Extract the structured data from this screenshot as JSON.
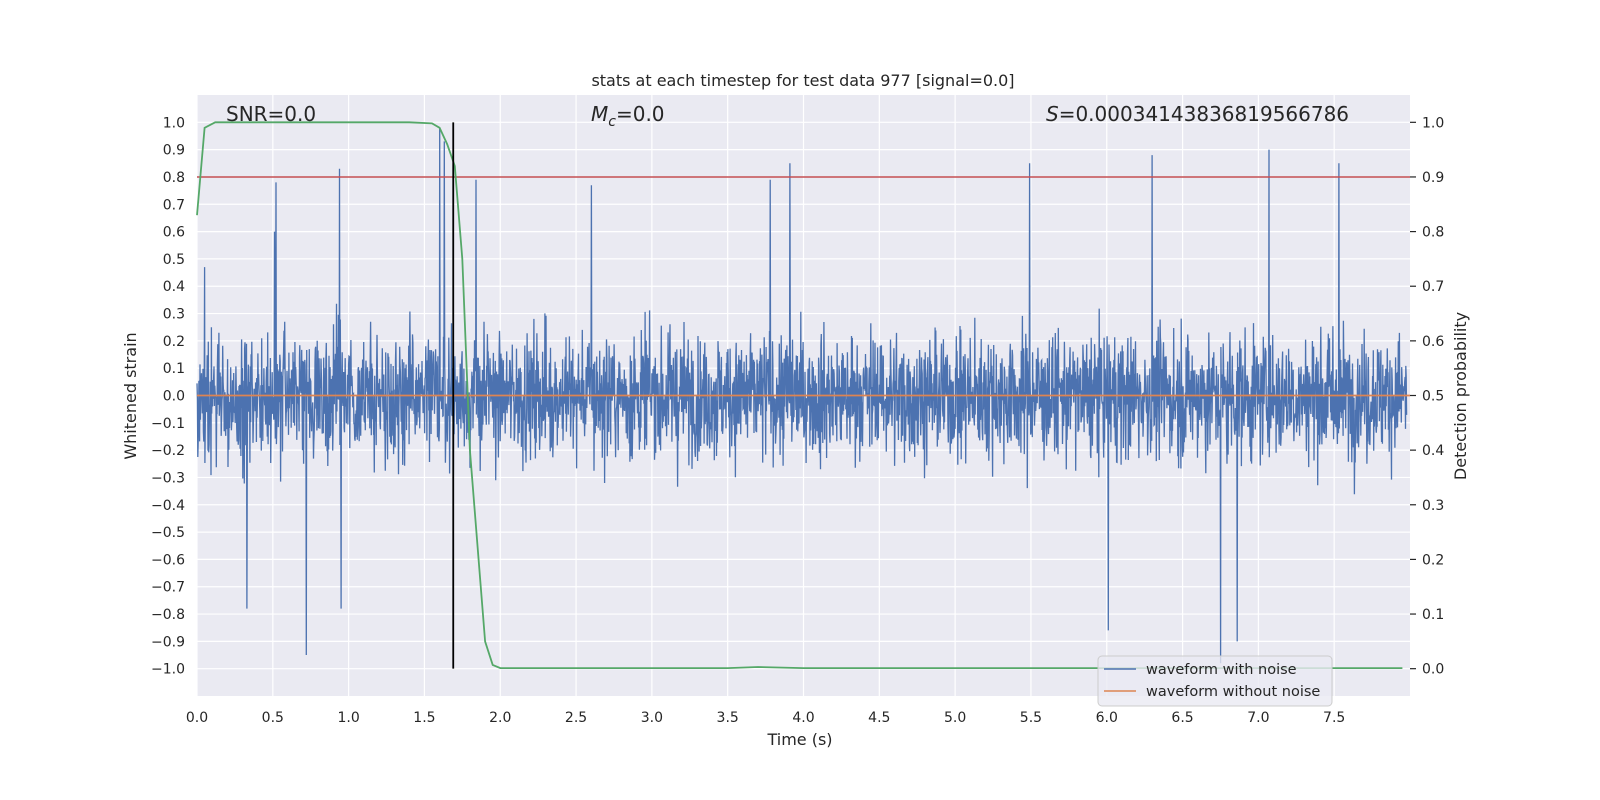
{
  "chart_data": {
    "type": "line",
    "title": "stats at each timestep for test data 977 [signal=0.0]",
    "xlabel": "Time (s)",
    "ylabel": "Whitened strain",
    "y2label": "Detection probability",
    "xlim": [
      0.0,
      8.0
    ],
    "ylim": [
      -1.1,
      1.1
    ],
    "y2lim": [
      -0.05,
      1.05
    ],
    "xticks": [
      0.0,
      0.5,
      1.0,
      1.5,
      2.0,
      2.5,
      3.0,
      3.5,
      4.0,
      4.5,
      5.0,
      5.5,
      6.0,
      6.5,
      7.0,
      7.5
    ],
    "xtick_labels": [
      "0.0",
      "0.5",
      "1.0",
      "1.5",
      "2.0",
      "2.5",
      "3.0",
      "3.5",
      "4.0",
      "4.5",
      "5.0",
      "5.5",
      "6.0",
      "6.5",
      "7.0",
      "7.5"
    ],
    "yticks": [
      1.0,
      0.9,
      0.8,
      0.7,
      0.6,
      0.5,
      0.4,
      0.3,
      0.2,
      0.1,
      0.0,
      -0.1,
      -0.2,
      -0.3,
      -0.4,
      -0.5,
      -0.6,
      -0.7,
      -0.8,
      -0.9,
      -1.0
    ],
    "ytick_labels": [
      "1.0",
      "0.9",
      "0.8",
      "0.7",
      "0.6",
      "0.5",
      "0.4",
      "0.3",
      "0.2",
      "0.1",
      "0.0",
      "-0.1",
      "-0.2",
      "-0.3",
      "-0.4",
      "-0.5",
      "-0.6",
      "-0.7",
      "-0.8",
      "-0.9",
      "-1.0"
    ],
    "y2ticks": [
      1.0,
      0.9,
      0.8,
      0.7,
      0.6,
      0.5,
      0.4,
      0.3,
      0.2,
      0.1,
      0.0
    ],
    "y2tick_labels": [
      "1.0",
      "0.9",
      "0.8",
      "0.7",
      "0.6",
      "0.5",
      "0.4",
      "0.3",
      "0.2",
      "0.1",
      "0.0"
    ],
    "annotations": {
      "snr": "SNR=0.0",
      "mc_symbol": "M",
      "mc_sub": "c",
      "mc_value": "=0.0",
      "s_symbol": "S",
      "s_value": "=0.00034143836819566786"
    },
    "series": [
      {
        "name": "waveform with noise",
        "axis": "left",
        "color": "#4c72b0",
        "description": "whitened noise strain, roughly uniform band between about -0.45 and 0.45 with spikes up to ~0.85 and down to ~-0.95",
        "spike_peaks": [
          {
            "t": 0.05,
            "v": 0.47
          },
          {
            "t": 0.33,
            "v": -0.78
          },
          {
            "t": 0.51,
            "v": 0.6
          },
          {
            "t": 0.52,
            "v": 0.78
          },
          {
            "t": 0.72,
            "v": -0.95
          },
          {
            "t": 0.95,
            "v": -0.78
          },
          {
            "t": 0.94,
            "v": 0.83
          },
          {
            "t": 1.6,
            "v": 0.98
          },
          {
            "t": 1.63,
            "v": 0.93
          },
          {
            "t": 1.84,
            "v": 0.79
          },
          {
            "t": 2.6,
            "v": 0.77
          },
          {
            "t": 3.78,
            "v": 0.79
          },
          {
            "t": 3.91,
            "v": 0.85
          },
          {
            "t": 5.49,
            "v": 0.85
          },
          {
            "t": 6.01,
            "v": -0.86
          },
          {
            "t": 6.3,
            "v": 0.88
          },
          {
            "t": 6.75,
            "v": -0.98
          },
          {
            "t": 6.86,
            "v": -0.9
          },
          {
            "t": 7.07,
            "v": 0.9
          },
          {
            "t": 7.53,
            "v": 0.85
          }
        ]
      },
      {
        "name": "waveform without noise",
        "axis": "left",
        "color": "#dd8452",
        "x": [
          0.0,
          8.0
        ],
        "y": [
          0.0,
          0.0
        ]
      },
      {
        "name": "detection probability",
        "axis": "right",
        "color": "#55a868",
        "x": [
          0.0,
          0.05,
          0.12,
          0.2,
          0.4,
          0.6,
          0.8,
          1.0,
          1.2,
          1.4,
          1.55,
          1.6,
          1.65,
          1.7,
          1.75,
          1.8,
          1.9,
          1.95,
          2.0,
          2.5,
          3.0,
          3.5,
          3.7,
          4.0,
          4.5,
          5.0,
          5.5,
          6.0,
          6.5,
          7.0,
          7.5,
          7.95
        ],
        "y": [
          0.83,
          0.99,
          1.0,
          1.0,
          1.0,
          1.0,
          1.0,
          1.0,
          1.0,
          1.0,
          0.998,
          0.99,
          0.96,
          0.92,
          0.75,
          0.4,
          0.05,
          0.007,
          0.001,
          0.001,
          0.001,
          0.001,
          0.003,
          0.001,
          0.001,
          0.001,
          0.001,
          0.001,
          0.001,
          0.001,
          0.001,
          0.001
        ]
      }
    ],
    "threshold": {
      "axis": "right",
      "value": 0.9,
      "color": "#c44e52"
    },
    "marker_time": {
      "value": 1.69,
      "color": "#000000"
    },
    "legend_position": "lower right",
    "grid": true
  }
}
